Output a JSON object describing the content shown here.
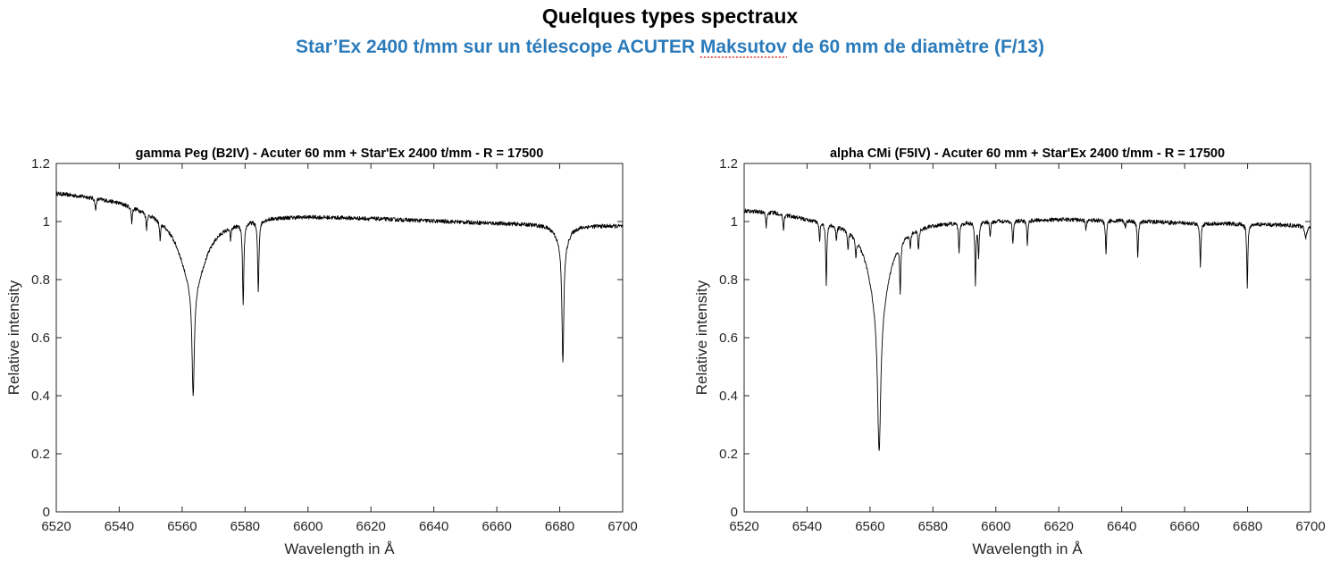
{
  "header": {
    "title": "Quelques types spectraux",
    "subtitle_parts": [
      "Star’Ex 2400 t/mm sur un télescope ACUTER ",
      "Maksutov",
      " de 60 mm de diamètre (F/13)"
    ],
    "subtitle_color": "#2b7bbb",
    "spellcheck_underline_word": "Maksutov"
  },
  "chart_data": [
    {
      "type": "line",
      "title": "gamma Peg (B2IV) - Acuter 60 mm + Star'Ex 2400 t/mm - R = 17500",
      "xlabel": "Wavelength in Å",
      "ylabel": "Relative intensity",
      "xlim": [
        6520,
        6700
      ],
      "ylim": [
        0,
        1.2
      ],
      "xticks": [
        6520,
        6540,
        6560,
        6580,
        6600,
        6620,
        6640,
        6660,
        6680,
        6700
      ],
      "yticks": [
        0,
        0.2,
        0.4,
        0.6,
        0.8,
        1,
        1.2
      ],
      "grid": false,
      "line_color": "#000000",
      "continuum": {
        "x": [
          6520,
          6530,
          6540,
          6550,
          6560,
          6575,
          6590,
          6600,
          6620,
          6640,
          6660,
          6680,
          6700
        ],
        "y": [
          1.1,
          1.09,
          1.075,
          1.05,
          1.03,
          1.015,
          1.02,
          1.02,
          1.012,
          1.003,
          0.995,
          0.99,
          0.985
        ]
      },
      "absorption_lines": [
        {
          "center": 6563.5,
          "depth": 0.24,
          "width": 5.0
        },
        {
          "center": 6563.5,
          "depth": 0.37,
          "width": 0.45
        },
        {
          "center": 6579.4,
          "depth": 0.28,
          "width": 0.25
        },
        {
          "center": 6584.2,
          "depth": 0.24,
          "width": 0.25
        },
        {
          "center": 6681.0,
          "depth": 0.08,
          "width": 2.0
        },
        {
          "center": 6681.0,
          "depth": 0.4,
          "width": 0.35
        },
        {
          "center": 6532.5,
          "depth": 0.04,
          "width": 0.2
        },
        {
          "center": 6544.0,
          "depth": 0.05,
          "width": 0.2
        },
        {
          "center": 6548.7,
          "depth": 0.05,
          "width": 0.2
        },
        {
          "center": 6553.0,
          "depth": 0.06,
          "width": 0.2
        },
        {
          "center": 6575.4,
          "depth": 0.04,
          "width": 0.2
        }
      ],
      "minimum": {
        "x": 6563.5,
        "y": 0.415
      }
    },
    {
      "type": "line",
      "title": "alpha CMi (F5IV) - Acuter 60 mm + Star'Ex 2400 t/mm - R = 17500",
      "xlabel": "Wavelength in Å",
      "ylabel": "Relative intensity",
      "xlim": [
        6520,
        6700
      ],
      "ylim": [
        0,
        1.2
      ],
      "xticks": [
        6520,
        6540,
        6560,
        6580,
        6600,
        6620,
        6640,
        6660,
        6680,
        6700
      ],
      "yticks": [
        0,
        0.2,
        0.4,
        0.6,
        0.8,
        1,
        1.2
      ],
      "grid": false,
      "line_color": "#000000",
      "continuum": {
        "x": [
          6520,
          6530,
          6540,
          6560,
          6580,
          6600,
          6620,
          6640,
          6660,
          6680,
          6700
        ],
        "y": [
          1.04,
          1.035,
          1.015,
          1.005,
          1.0,
          1.005,
          1.008,
          1.005,
          0.995,
          0.992,
          0.985
        ]
      },
      "absorption_lines": [
        {
          "center": 6562.9,
          "depth": 0.3,
          "width": 4.0
        },
        {
          "center": 6562.9,
          "depth": 0.49,
          "width": 0.6
        },
        {
          "center": 6546.1,
          "depth": 0.21,
          "width": 0.2
        },
        {
          "center": 6569.6,
          "depth": 0.17,
          "width": 0.2
        },
        {
          "center": 6593.5,
          "depth": 0.21,
          "width": 0.2
        },
        {
          "center": 6594.5,
          "depth": 0.12,
          "width": 0.2
        },
        {
          "center": 6588.3,
          "depth": 0.1,
          "width": 0.2
        },
        {
          "center": 6605.4,
          "depth": 0.08,
          "width": 0.2
        },
        {
          "center": 6610.0,
          "depth": 0.08,
          "width": 0.2
        },
        {
          "center": 6635.0,
          "depth": 0.12,
          "width": 0.2
        },
        {
          "center": 6645.1,
          "depth": 0.13,
          "width": 0.2
        },
        {
          "center": 6665.0,
          "depth": 0.15,
          "width": 0.2
        },
        {
          "center": 6679.9,
          "depth": 0.22,
          "width": 0.2
        },
        {
          "center": 6527.0,
          "depth": 0.05,
          "width": 0.2
        },
        {
          "center": 6532.5,
          "depth": 0.05,
          "width": 0.2
        },
        {
          "center": 6544.0,
          "depth": 0.06,
          "width": 0.2
        },
        {
          "center": 6549.3,
          "depth": 0.05,
          "width": 0.2
        },
        {
          "center": 6553.0,
          "depth": 0.06,
          "width": 0.2
        },
        {
          "center": 6555.5,
          "depth": 0.06,
          "width": 0.2
        },
        {
          "center": 6572.8,
          "depth": 0.05,
          "width": 0.2
        },
        {
          "center": 6575.4,
          "depth": 0.07,
          "width": 0.2
        },
        {
          "center": 6598.2,
          "depth": 0.05,
          "width": 0.2
        },
        {
          "center": 6628.6,
          "depth": 0.03,
          "width": 0.2
        },
        {
          "center": 6641.2,
          "depth": 0.03,
          "width": 0.2
        },
        {
          "center": 6698.5,
          "depth": 0.04,
          "width": 0.4
        }
      ],
      "minimum": {
        "x": 6562.9,
        "y": 0.21
      }
    }
  ]
}
